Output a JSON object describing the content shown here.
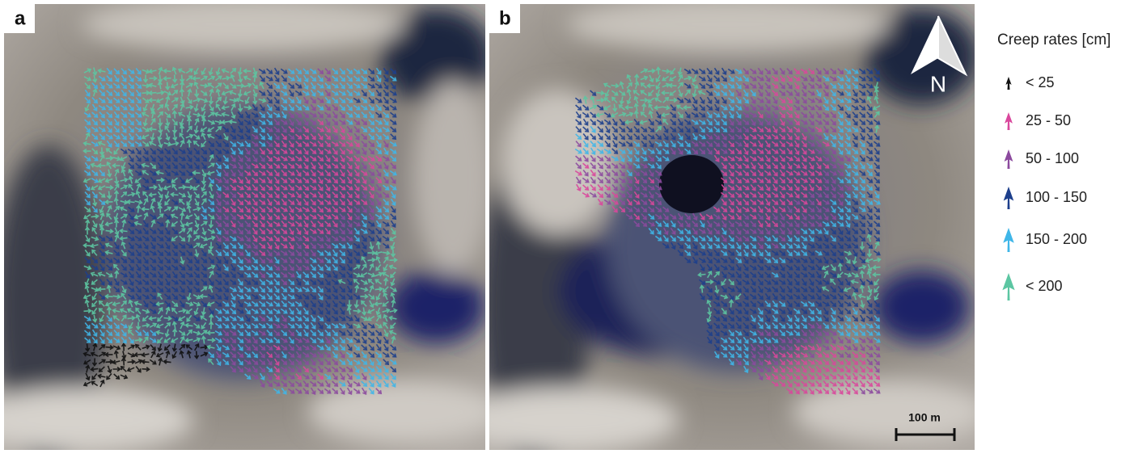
{
  "panels": [
    {
      "label": "a"
    },
    {
      "label": "b"
    }
  ],
  "north_arrow": {
    "label": "N"
  },
  "scale_bar": {
    "label": "100 m"
  },
  "legend": {
    "title": "Creep rates [cm]",
    "items": [
      {
        "label": "< 25",
        "color": "#111111"
      },
      {
        "label": "25 - 50",
        "color": "#d9479c"
      },
      {
        "label": "50 - 100",
        "color": "#8c4a9e"
      },
      {
        "label": "100 - 150",
        "color": "#1d3f8c"
      },
      {
        "label": "150 - 200",
        "color": "#3fb6e8"
      },
      {
        "label": "< 200",
        "color": "#5cc6a2"
      }
    ]
  }
}
